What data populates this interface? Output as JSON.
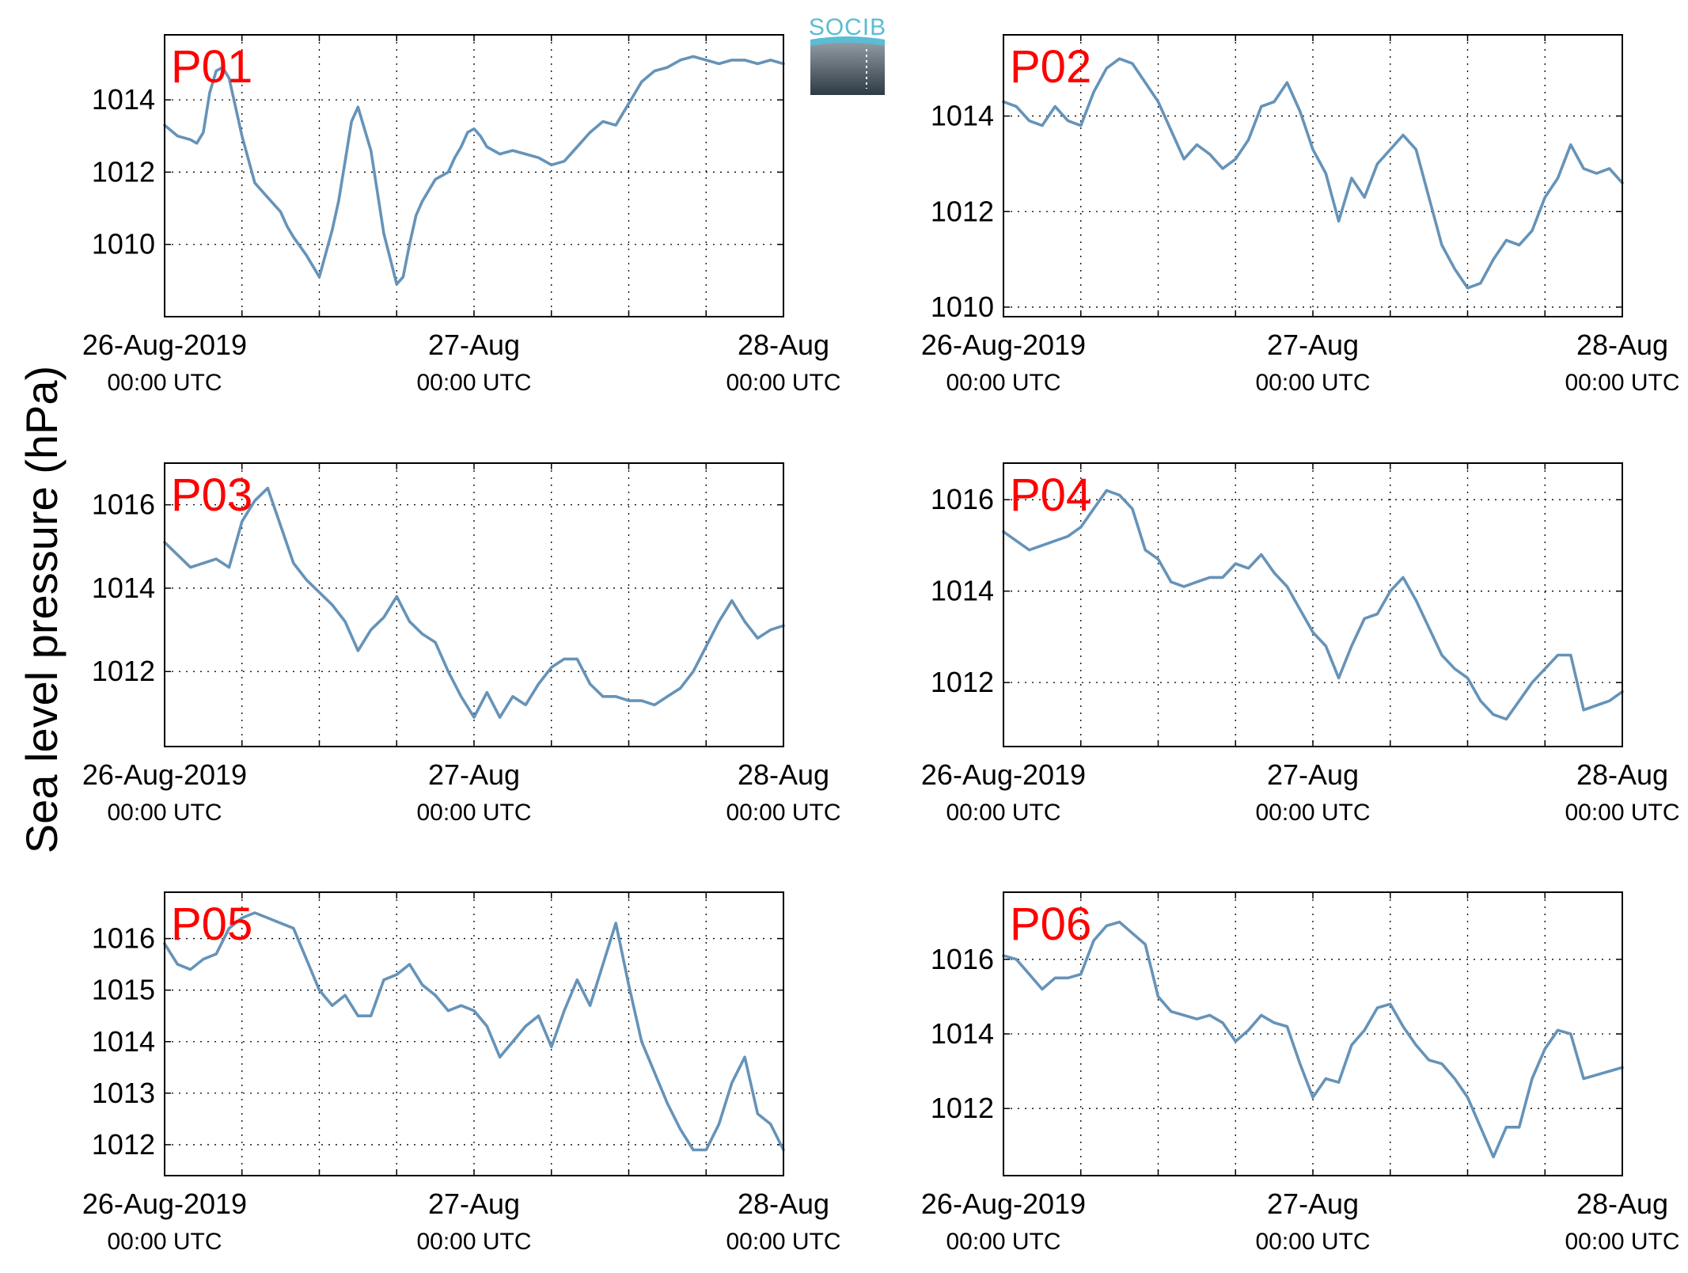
{
  "figure": {
    "ylabel": "Sea level pressure (hPa)",
    "logo_text": "SOCIB",
    "line_color": "#6693b8",
    "label_color": "#ff0000",
    "x_ticks": [
      {
        "main": "26-Aug-2019",
        "sub": "00:00 UTC"
      },
      {
        "main": "27-Aug",
        "sub": "00:00 UTC"
      },
      {
        "main": "28-Aug",
        "sub": "00:00 UTC"
      }
    ]
  },
  "chart_data": [
    {
      "type": "line",
      "label": "P01",
      "xlim": [
        0,
        48
      ],
      "ylim": [
        1008,
        1015.8
      ],
      "yticks": [
        1010,
        1012,
        1014
      ],
      "grid": true,
      "x": [
        0,
        1,
        2,
        2.5,
        3,
        3.5,
        4,
        4.5,
        5,
        6,
        7,
        8,
        9,
        9.5,
        10,
        11,
        12,
        13,
        13.5,
        14,
        14.5,
        15,
        16,
        17,
        18,
        18.5,
        19,
        19.5,
        20,
        21,
        22,
        22.5,
        23,
        23.5,
        24,
        24.5,
        25,
        26,
        27,
        28,
        29,
        30,
        31,
        32,
        33,
        34,
        35,
        36,
        37,
        38,
        39,
        40,
        41,
        42,
        43,
        44,
        45,
        46,
        47,
        48
      ],
      "y": [
        1013.3,
        1013,
        1012.9,
        1012.8,
        1013.1,
        1014.2,
        1014.8,
        1014.9,
        1014.6,
        1013,
        1011.7,
        1011.3,
        1010.9,
        1010.5,
        1010.2,
        1009.7,
        1009.1,
        1010.4,
        1011.2,
        1012.3,
        1013.4,
        1013.8,
        1012.6,
        1010.3,
        1008.9,
        1009.1,
        1010,
        1010.8,
        1011.2,
        1011.8,
        1012,
        1012.4,
        1012.7,
        1013.1,
        1013.2,
        1013,
        1012.7,
        1012.5,
        1012.6,
        1012.5,
        1012.4,
        1012.2,
        1012.3,
        1012.7,
        1013.1,
        1013.4,
        1013.3,
        1013.9,
        1014.5,
        1014.8,
        1014.9,
        1015.1,
        1015.2,
        1015.1,
        1015,
        1015.1,
        1015.1,
        1015,
        1015.1,
        1015
      ]
    },
    {
      "type": "line",
      "label": "P02",
      "xlim": [
        0,
        48
      ],
      "ylim": [
        1009.8,
        1015.7
      ],
      "yticks": [
        1010,
        1012,
        1014
      ],
      "grid": true,
      "x": [
        0,
        1,
        2,
        3,
        4,
        5,
        6,
        7,
        8,
        9,
        10,
        11,
        12,
        13,
        14,
        15,
        16,
        17,
        18,
        19,
        20,
        21,
        22,
        23,
        24,
        25,
        26,
        27,
        28,
        29,
        30,
        31,
        32,
        33,
        34,
        35,
        36,
        37,
        38,
        39,
        40,
        41,
        42,
        43,
        44,
        45,
        46,
        47,
        48
      ],
      "y": [
        1014.3,
        1014.2,
        1013.9,
        1013.8,
        1014.2,
        1013.9,
        1013.8,
        1014.5,
        1015,
        1015.2,
        1015.1,
        1014.7,
        1014.3,
        1013.7,
        1013.1,
        1013.4,
        1013.2,
        1012.9,
        1013.1,
        1013.5,
        1014.2,
        1014.3,
        1014.7,
        1014.1,
        1013.3,
        1012.8,
        1011.8,
        1012.7,
        1012.3,
        1013,
        1013.3,
        1013.6,
        1013.3,
        1012.3,
        1011.3,
        1010.8,
        1010.4,
        1010.5,
        1011,
        1011.4,
        1011.3,
        1011.6,
        1012.3,
        1012.7,
        1013.4,
        1012.9,
        1012.8,
        1012.9,
        1012.6
      ]
    },
    {
      "type": "line",
      "label": "P03",
      "xlim": [
        0,
        48
      ],
      "ylim": [
        1010.2,
        1017
      ],
      "yticks": [
        1012,
        1014,
        1016
      ],
      "grid": true,
      "x": [
        0,
        1,
        2,
        3,
        4,
        5,
        6,
        7,
        8,
        9,
        10,
        11,
        12,
        13,
        14,
        15,
        16,
        17,
        18,
        19,
        20,
        21,
        22,
        23,
        24,
        25,
        26,
        27,
        28,
        29,
        30,
        31,
        32,
        33,
        34,
        35,
        36,
        37,
        38,
        39,
        40,
        41,
        42,
        43,
        44,
        45,
        46,
        47,
        48
      ],
      "y": [
        1015.1,
        1014.8,
        1014.5,
        1014.6,
        1014.7,
        1014.5,
        1015.6,
        1016.1,
        1016.4,
        1015.5,
        1014.6,
        1014.2,
        1013.9,
        1013.6,
        1013.2,
        1012.5,
        1013,
        1013.3,
        1013.8,
        1013.2,
        1012.9,
        1012.7,
        1012,
        1011.4,
        1010.9,
        1011.5,
        1010.9,
        1011.4,
        1011.2,
        1011.7,
        1012.1,
        1012.3,
        1012.3,
        1011.7,
        1011.4,
        1011.4,
        1011.3,
        1011.3,
        1011.2,
        1011.4,
        1011.6,
        1012,
        1012.6,
        1013.2,
        1013.7,
        1013.2,
        1012.8,
        1013,
        1013.1
      ]
    },
    {
      "type": "line",
      "label": "P04",
      "xlim": [
        0,
        48
      ],
      "ylim": [
        1010.6,
        1016.8
      ],
      "yticks": [
        1012,
        1014,
        1016
      ],
      "grid": true,
      "x": [
        0,
        1,
        2,
        3,
        4,
        5,
        6,
        7,
        8,
        9,
        10,
        11,
        12,
        13,
        14,
        15,
        16,
        17,
        18,
        19,
        20,
        21,
        22,
        23,
        24,
        25,
        26,
        27,
        28,
        29,
        30,
        31,
        32,
        33,
        34,
        35,
        36,
        37,
        38,
        39,
        40,
        41,
        42,
        43,
        44,
        45,
        46,
        47,
        48
      ],
      "y": [
        1015.3,
        1015.1,
        1014.9,
        1015,
        1015.1,
        1015.2,
        1015.4,
        1015.8,
        1016.2,
        1016.1,
        1015.8,
        1014.9,
        1014.7,
        1014.2,
        1014.1,
        1014.2,
        1014.3,
        1014.3,
        1014.6,
        1014.5,
        1014.8,
        1014.4,
        1014.1,
        1013.6,
        1013.1,
        1012.8,
        1012.1,
        1012.8,
        1013.4,
        1013.5,
        1014,
        1014.3,
        1013.8,
        1013.2,
        1012.6,
        1012.3,
        1012.1,
        1011.6,
        1011.3,
        1011.2,
        1011.6,
        1012,
        1012.3,
        1012.6,
        1012.6,
        1011.4,
        1011.5,
        1011.6,
        1011.8
      ]
    },
    {
      "type": "line",
      "label": "P05",
      "xlim": [
        0,
        48
      ],
      "ylim": [
        1011.4,
        1016.9
      ],
      "yticks": [
        1012,
        1013,
        1014,
        1015,
        1016
      ],
      "grid": true,
      "x": [
        0,
        1,
        2,
        3,
        4,
        5,
        6,
        7,
        8,
        9,
        10,
        11,
        12,
        13,
        14,
        15,
        16,
        17,
        18,
        19,
        20,
        21,
        22,
        23,
        24,
        25,
        26,
        27,
        28,
        29,
        30,
        31,
        32,
        33,
        34,
        35,
        36,
        37,
        38,
        39,
        40,
        41,
        42,
        43,
        44,
        45,
        46,
        47,
        48
      ],
      "y": [
        1015.9,
        1015.5,
        1015.4,
        1015.6,
        1015.7,
        1016.2,
        1016.4,
        1016.5,
        1016.4,
        1016.3,
        1016.2,
        1015.6,
        1015,
        1014.7,
        1014.9,
        1014.5,
        1014.5,
        1015.2,
        1015.3,
        1015.5,
        1015.1,
        1014.9,
        1014.6,
        1014.7,
        1014.6,
        1014.3,
        1013.7,
        1014,
        1014.3,
        1014.5,
        1013.9,
        1014.6,
        1015.2,
        1014.7,
        1015.5,
        1016.3,
        1015.1,
        1014,
        1013.4,
        1012.8,
        1012.3,
        1011.9,
        1011.9,
        1012.4,
        1013.2,
        1013.7,
        1012.6,
        1012.4,
        1011.9
      ]
    },
    {
      "type": "line",
      "label": "P06",
      "xlim": [
        0,
        48
      ],
      "ylim": [
        1010.2,
        1017.8
      ],
      "yticks": [
        1012,
        1014,
        1016
      ],
      "grid": true,
      "x": [
        0,
        1,
        2,
        3,
        4,
        5,
        6,
        7,
        8,
        9,
        10,
        11,
        12,
        13,
        14,
        15,
        16,
        17,
        18,
        19,
        20,
        21,
        22,
        23,
        24,
        25,
        26,
        27,
        28,
        29,
        30,
        31,
        32,
        33,
        34,
        35,
        36,
        37,
        38,
        39,
        40,
        41,
        42,
        43,
        44,
        45,
        46,
        47,
        48
      ],
      "y": [
        1016.1,
        1016,
        1015.6,
        1015.2,
        1015.5,
        1015.5,
        1015.6,
        1016.5,
        1016.9,
        1017,
        1016.7,
        1016.4,
        1015,
        1014.6,
        1014.5,
        1014.4,
        1014.5,
        1014.3,
        1013.8,
        1014.1,
        1014.5,
        1014.3,
        1014.2,
        1013.2,
        1012.3,
        1012.8,
        1012.7,
        1013.7,
        1014.1,
        1014.7,
        1014.8,
        1014.2,
        1013.7,
        1013.3,
        1013.2,
        1012.8,
        1012.3,
        1011.5,
        1010.7,
        1011.5,
        1011.5,
        1012.8,
        1013.6,
        1014.1,
        1014,
        1012.8,
        1012.9,
        1013,
        1013.1
      ]
    }
  ]
}
